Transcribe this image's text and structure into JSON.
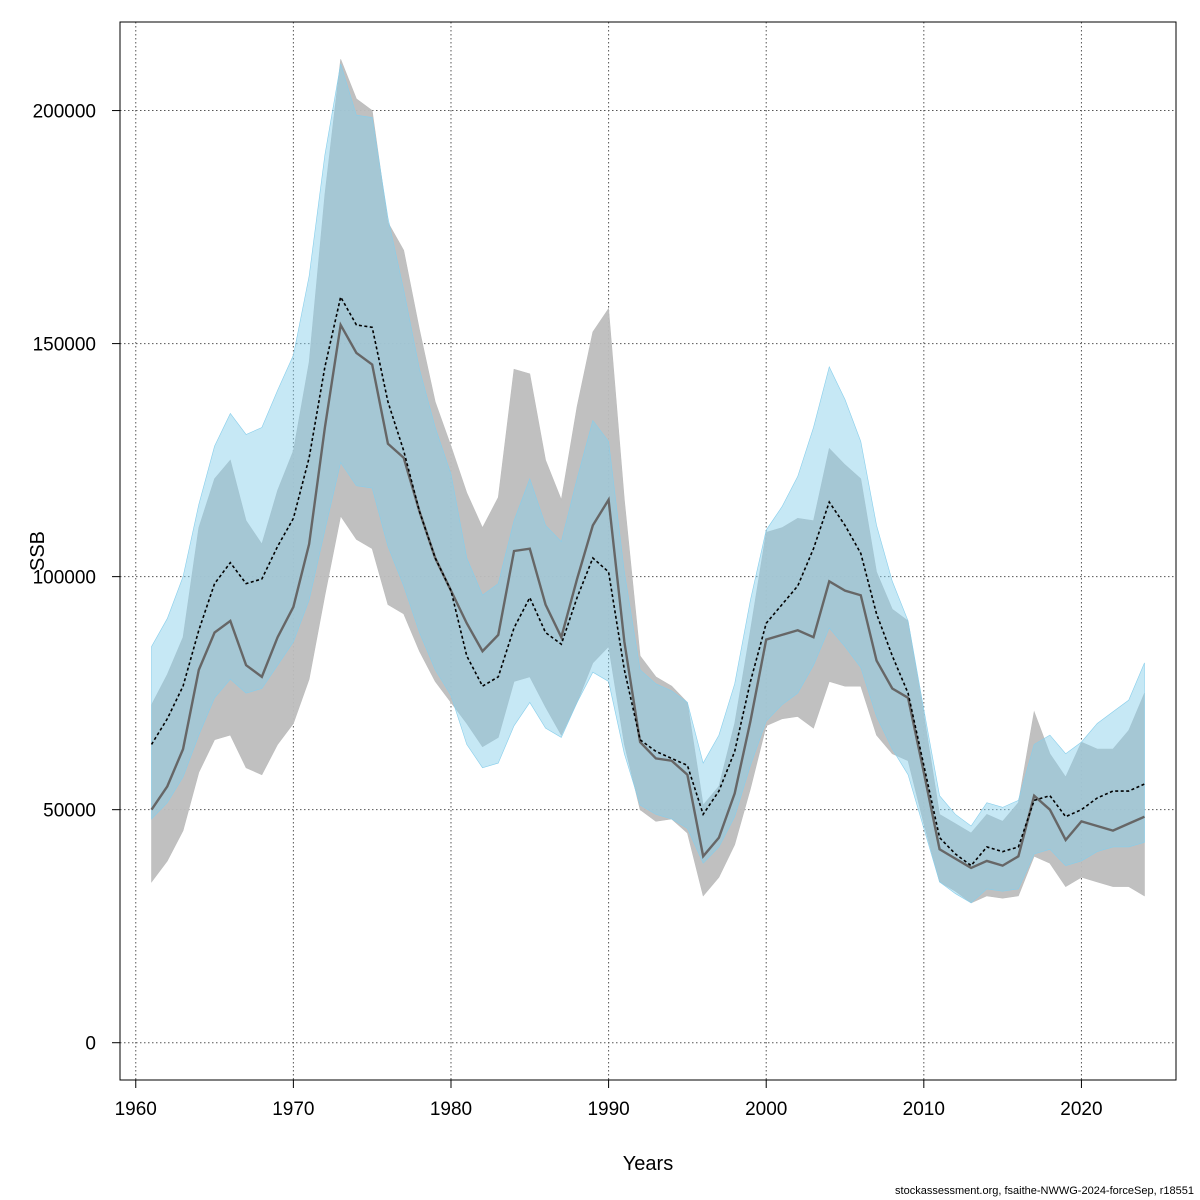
{
  "chart_data": {
    "type": "area",
    "xlabel": "Years",
    "ylabel": "SSB",
    "xlim": [
      1959,
      2026
    ],
    "ylim": [
      -8000,
      219000
    ],
    "xticks": [
      1960,
      1970,
      1980,
      1990,
      2000,
      2010,
      2020
    ],
    "yticks": [
      0,
      50000,
      100000,
      150000,
      200000
    ],
    "grid": true,
    "x": [
      1961,
      1962,
      1963,
      1964,
      1965,
      1966,
      1967,
      1968,
      1969,
      1970,
      1971,
      1972,
      1973,
      1974,
      1975,
      1976,
      1977,
      1978,
      1979,
      1980,
      1981,
      1982,
      1983,
      1984,
      1985,
      1986,
      1987,
      1988,
      1989,
      1990,
      1991,
      1992,
      1993,
      1994,
      1995,
      1996,
      1997,
      1998,
      1999,
      2000,
      2001,
      2002,
      2003,
      2004,
      2005,
      2006,
      2007,
      2008,
      2009,
      2010,
      2011,
      2012,
      2013,
      2014,
      2015,
      2016,
      2017,
      2018,
      2019,
      2020,
      2021,
      2022,
      2023,
      2024
    ],
    "series": [
      {
        "style": "solid",
        "color": "#666666",
        "band_color": "#bdbdbd",
        "estimate": [
          50000,
          55000,
          63000,
          80000,
          88000,
          90500,
          81000,
          78500,
          87000,
          93500,
          107000,
          132000,
          154000,
          148000,
          145500,
          128500,
          125500,
          114000,
          104000,
          97000,
          90000,
          84000,
          87500,
          105500,
          106000,
          94000,
          87000,
          99500,
          111000,
          116500,
          86000,
          64500,
          61000,
          60500,
          57500,
          40000,
          44000,
          53500,
          69000,
          86500,
          87500,
          88500,
          87000,
          99000,
          97000,
          96000,
          82000,
          76000,
          74000,
          58000,
          41500,
          39500,
          37500,
          39000,
          38000,
          40000,
          53000,
          50000,
          43500,
          47500,
          46500,
          45500,
          47000,
          48500
        ],
        "lower": [
          34500,
          39000,
          45500,
          58000,
          65000,
          66000,
          59000,
          57500,
          64000,
          68500,
          78000,
          96000,
          113000,
          108000,
          106000,
          94000,
          92000,
          84000,
          77500,
          73000,
          68500,
          63500,
          65500,
          77500,
          78500,
          72000,
          66000,
          73000,
          81500,
          85000,
          64000,
          50000,
          47500,
          48000,
          45000,
          31500,
          35500,
          42500,
          54500,
          68000,
          69500,
          70000,
          67500,
          77500,
          76500,
          76500,
          66000,
          62000,
          60500,
          47000,
          34500,
          32500,
          30000,
          31500,
          31000,
          31500,
          40000,
          38500,
          33500,
          35500,
          34500,
          33500,
          33500,
          31500
        ],
        "upper": [
          72500,
          79000,
          87000,
          110500,
          121000,
          125000,
          112000,
          107000,
          118500,
          127000,
          146000,
          182000,
          211000,
          202500,
          200000,
          176000,
          170000,
          153000,
          137500,
          128000,
          118000,
          110500,
          117000,
          144500,
          143500,
          125000,
          116500,
          136500,
          152500,
          157500,
          116500,
          83000,
          78500,
          76500,
          73000,
          51000,
          55000,
          68500,
          88500,
          109500,
          110500,
          112500,
          112000,
          127500,
          124000,
          121000,
          101000,
          93000,
          90500,
          70500,
          49000,
          47000,
          45000,
          49000,
          47500,
          51500,
          71000,
          62000,
          57000,
          64500,
          63000,
          63000,
          67000,
          75000
        ]
      },
      {
        "style": "dashed",
        "color": "#000000",
        "band_color": "#87ceeb",
        "estimate": [
          64000,
          69500,
          76500,
          88500,
          98500,
          103000,
          98500,
          99500,
          106500,
          112500,
          125500,
          145000,
          160000,
          154000,
          153500,
          137500,
          127000,
          114000,
          104000,
          97000,
          83000,
          76500,
          78500,
          89000,
          95500,
          88000,
          85500,
          95500,
          104000,
          101000,
          80000,
          65000,
          62500,
          61000,
          59500,
          49000,
          54000,
          62500,
          77500,
          90000,
          94000,
          98000,
          106000,
          116000,
          111000,
          105000,
          92000,
          83000,
          75000,
          59500,
          44000,
          40500,
          38000,
          42000,
          41000,
          42000,
          52000,
          53000,
          48500,
          50000,
          52500,
          54000,
          54000,
          55500
        ],
        "lower": [
          48000,
          51500,
          57000,
          66000,
          74000,
          78000,
          75000,
          76000,
          81000,
          86000,
          95000,
          110000,
          124500,
          119500,
          119000,
          106500,
          98000,
          88000,
          80000,
          74500,
          64000,
          59000,
          60000,
          68000,
          73000,
          67500,
          65500,
          73000,
          79500,
          77500,
          62000,
          51000,
          49000,
          48000,
          46000,
          38500,
          42000,
          48500,
          59500,
          69000,
          72500,
          75000,
          81000,
          89000,
          85000,
          80500,
          70000,
          63000,
          57500,
          46000,
          34500,
          32000,
          30000,
          33000,
          32500,
          33000,
          40500,
          41500,
          38000,
          39000,
          41000,
          42000,
          42000,
          43000
        ],
        "upper": [
          85000,
          91000,
          100000,
          115500,
          128000,
          135000,
          130500,
          132000,
          140000,
          147500,
          164500,
          190500,
          210000,
          199000,
          198500,
          177000,
          161500,
          144500,
          132000,
          122000,
          104000,
          96000,
          98500,
          112000,
          121000,
          111000,
          107500,
          121000,
          133500,
          129000,
          101000,
          80000,
          77000,
          75500,
          73000,
          60000,
          66000,
          77000,
          95000,
          110000,
          115000,
          121500,
          132000,
          145000,
          138000,
          129000,
          111000,
          99000,
          90500,
          71500,
          53000,
          49000,
          46500,
          51500,
          50500,
          52000,
          64000,
          66000,
          62000,
          64500,
          68500,
          71000,
          73500,
          81500
        ]
      }
    ]
  },
  "footer": {
    "credit": "stockassessment.org, fsaithe-NWWG-2024-forceSep, r18551"
  }
}
